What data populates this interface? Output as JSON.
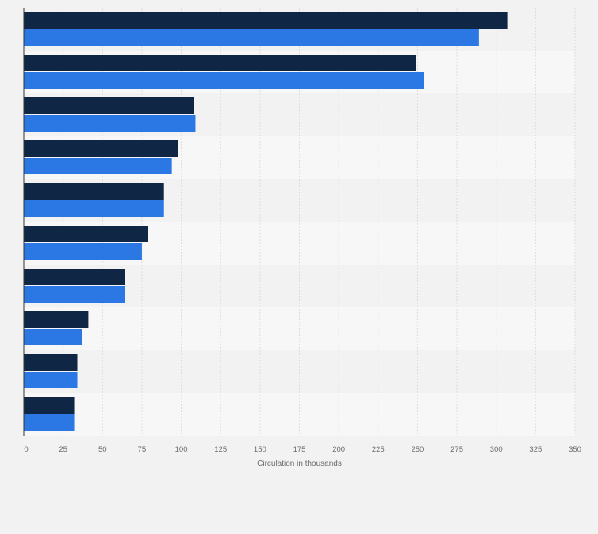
{
  "chart_data": {
    "type": "bar",
    "orientation": "horizontal",
    "categories": [
      "",
      "",
      "",
      "",
      "",
      "",
      "",
      "",
      "",
      ""
    ],
    "series": [
      {
        "color": "#0f2744",
        "values": [
          307,
          249,
          108,
          98,
          89,
          79,
          64,
          41,
          34,
          32
        ]
      },
      {
        "color": "#2b78e4",
        "values": [
          289,
          254,
          109,
          94,
          89,
          75,
          64,
          37,
          34,
          32
        ]
      }
    ],
    "xlabel": "Circulation in thousands",
    "ylabel": "",
    "xlim": [
      0,
      350
    ],
    "xticks": [
      0,
      25,
      50,
      75,
      100,
      125,
      150,
      175,
      200,
      225,
      250,
      275,
      300,
      325,
      350
    ],
    "xtick_labels": [
      "0",
      "25",
      "50",
      "75",
      "100",
      "125",
      "150",
      "175",
      "200",
      "225",
      "250",
      "275",
      "300",
      "325",
      "350"
    ],
    "grid": true,
    "legend": "none"
  },
  "colors": {
    "background": "#f2f2f2",
    "plot_band_light": "#f7f7f7",
    "plot_band_dark": "#f2f2f2",
    "gridline": "#dcdcdc",
    "axis_line": "#333333"
  }
}
